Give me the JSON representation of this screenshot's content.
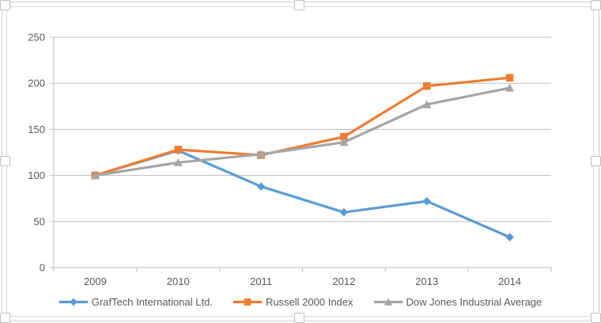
{
  "chart_data": {
    "type": "line",
    "title": "",
    "x_categories": [
      "2009",
      "2010",
      "2011",
      "2012",
      "2013",
      "2014"
    ],
    "series": [
      {
        "name": "GrafTech International Ltd.",
        "color": "#5B9BD5",
        "marker": "diamond",
        "values": [
          100,
          127,
          88,
          60,
          72,
          33
        ]
      },
      {
        "name": "Russell 2000 Index",
        "color": "#ED7D31",
        "marker": "square",
        "values": [
          100,
          128,
          122,
          142,
          197,
          206
        ]
      },
      {
        "name": "Dow Jones Industrial Average",
        "color": "#A5A5A5",
        "marker": "triangle",
        "values": [
          100,
          114,
          123,
          136,
          177,
          195
        ]
      }
    ],
    "ylim": [
      0,
      250
    ],
    "ytick_interval": 50,
    "ytick_labels": [
      "0",
      "50",
      "100",
      "150",
      "200",
      "250"
    ],
    "grid": true,
    "legend_position": "bottom",
    "colors": {
      "axis_text": "#595959",
      "gridline": "#BFBFBF",
      "axis_line": "#BFBFBF",
      "chart_border": "#D9D9D9",
      "selection_frame": "#CCCCCC"
    }
  }
}
